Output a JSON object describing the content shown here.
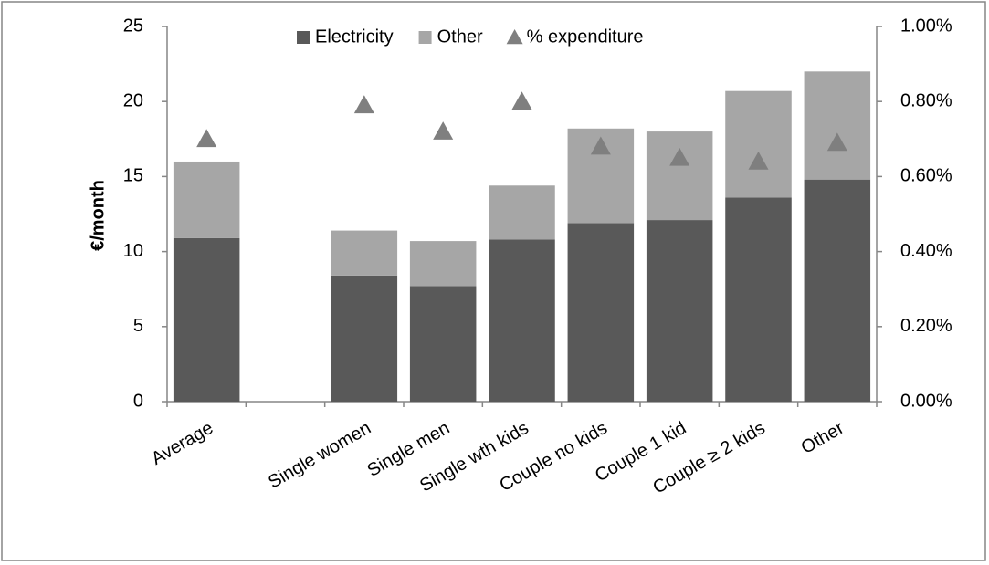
{
  "chart_data": {
    "type": "bar",
    "stacked": true,
    "y_label": "€/month",
    "categories": [
      "Average",
      null,
      "Single women",
      "Single men",
      "Single wth kids",
      "Couple no kids",
      "Couple 1 kid",
      "Couple ≥ 2 kids",
      "Other"
    ],
    "series": [
      {
        "name": "Electricity",
        "color": "#595959",
        "values": [
          10.9,
          null,
          8.4,
          7.7,
          10.8,
          11.9,
          12.1,
          13.6,
          14.8
        ]
      },
      {
        "name": "Other",
        "color": "#a6a6a6",
        "values": [
          5.1,
          null,
          3.0,
          3.0,
          3.6,
          6.3,
          5.9,
          7.1,
          7.2
        ]
      },
      {
        "name": "% expenditure",
        "type": "scatter",
        "marker": "triangle",
        "color": "#7f7f7f",
        "axis": "y2",
        "values": [
          0.7,
          null,
          0.79,
          0.72,
          0.8,
          0.68,
          0.65,
          0.64,
          0.69
        ]
      }
    ],
    "ylim": [
      0,
      25
    ],
    "yticks": [
      0,
      5,
      10,
      15,
      20,
      25
    ],
    "y2lim": [
      0,
      1
    ],
    "y2ticks": [
      {
        "value": 0,
        "label": "0.00%"
      },
      {
        "value": 0.2,
        "label": "0.20%"
      },
      {
        "value": 0.4,
        "label": "0.40%"
      },
      {
        "value": 0.6,
        "label": "0.60%"
      },
      {
        "value": 0.8,
        "label": "0.80%"
      },
      {
        "value": 1,
        "label": "1.00%"
      }
    ],
    "legend": "top"
  }
}
